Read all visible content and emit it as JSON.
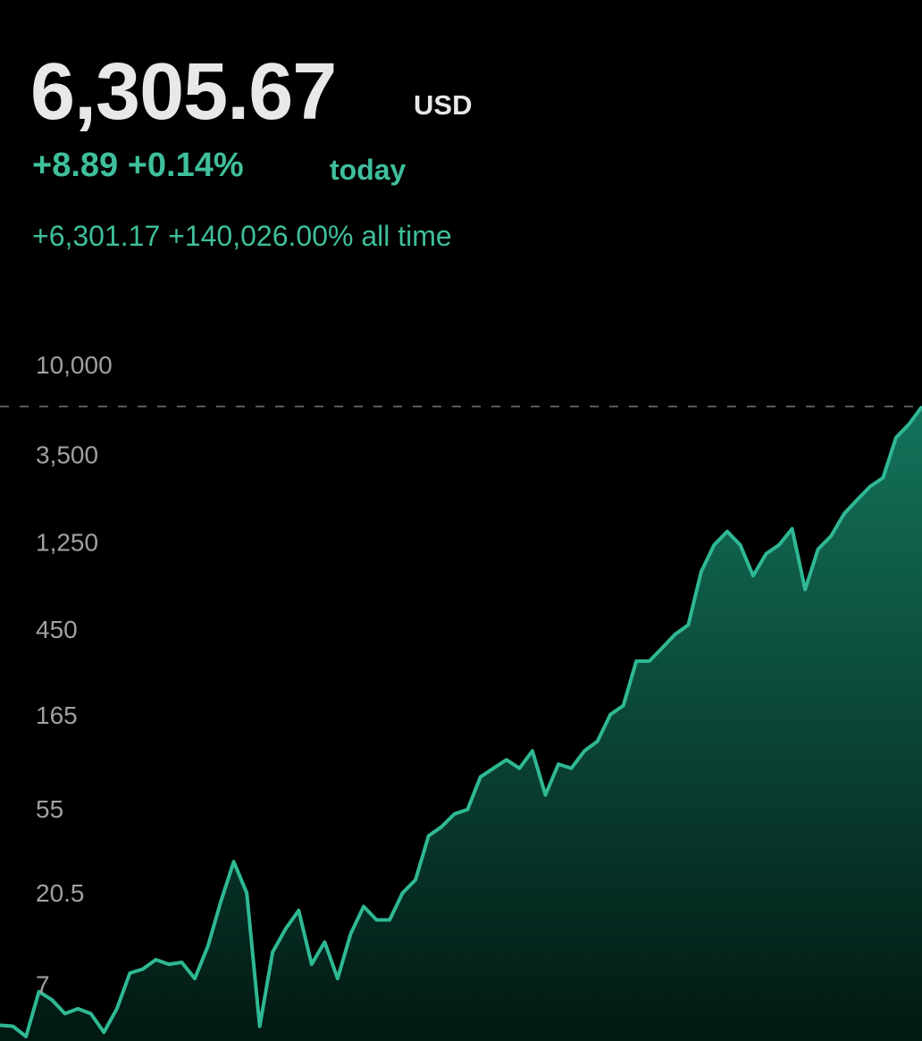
{
  "header": {
    "value": "6,305.67",
    "currency": "USD",
    "today_change": "+8.89 +0.14%",
    "today_label": "today",
    "all_time_change": "+6,301.17 +140,026.00%",
    "all_time_label": "all time"
  },
  "chart_data": {
    "type": "area",
    "log_scale": true,
    "color": "#2fb894",
    "values": [
      4.45,
      4.4,
      3.9,
      6.6,
      6.0,
      5.1,
      5.4,
      5.1,
      4.1,
      5.4,
      8.2,
      8.6,
      9.6,
      9.1,
      9.3,
      7.7,
      11.2,
      18.9,
      30.3,
      21.0,
      4.4,
      10.5,
      13.8,
      17.1,
      9.1,
      11.8,
      7.7,
      13.0,
      17.9,
      15.3,
      15.3,
      21.0,
      24.5,
      41.0,
      45.6,
      53.0,
      55.8,
      81.9,
      90.6,
      100,
      90.6,
      111,
      66.3,
      95,
      90.6,
      111,
      124,
      170,
      189,
      318,
      318,
      372,
      436,
      486,
      909,
      1243,
      1455,
      1243,
      865,
      1122,
      1243,
      1503,
      737,
      1183,
      1380,
      1791,
      2105,
      2465,
      2734,
      4371,
      5118,
      6300
    ],
    "reference_value": 6305.67,
    "ylim": [
      3.7,
      21000
    ],
    "yticks": [
      {
        "value": 10000,
        "label": "10,000"
      },
      {
        "value": 3500,
        "label": "3,500"
      },
      {
        "value": 1250,
        "label": "1,250"
      },
      450,
      165,
      55,
      20.5,
      7
    ]
  }
}
